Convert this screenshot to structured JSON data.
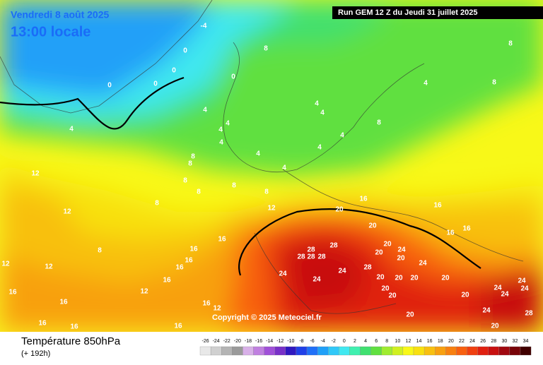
{
  "header": {
    "date": "Vendredi 8 août 2025",
    "local_time": "13:00 locale",
    "run": "Run GEM 12 Z du Jeudi 31 juillet 2025"
  },
  "copyright": "Copyright © 2025 Meteociel.fr",
  "footer": {
    "title": "Température 850hPa",
    "lead": "(+ 192h)"
  },
  "scale": {
    "ticks": [
      -26,
      -24,
      -22,
      -20,
      -18,
      -16,
      -14,
      -12,
      -10,
      -8,
      -6,
      -4,
      -2,
      0,
      2,
      4,
      6,
      8,
      10,
      12,
      14,
      16,
      18,
      20,
      22,
      24,
      26,
      28,
      30,
      32,
      34
    ],
    "colors": [
      "#e8e8e8",
      "#d0d0d0",
      "#b4b4b4",
      "#9a9a9a",
      "#d8b0e8",
      "#c080e0",
      "#a050d8",
      "#7830c8",
      "#3018c0",
      "#2040e8",
      "#2070f8",
      "#20a0f8",
      "#30c8f8",
      "#40e8f0",
      "#40f0b0",
      "#40e070",
      "#60e040",
      "#a0ec30",
      "#d0f020",
      "#f8f818",
      "#f8e010",
      "#f8c010",
      "#f8a010",
      "#f88010",
      "#f86010",
      "#f04010",
      "#e02010",
      "#c81010",
      "#a00810",
      "#780408",
      "#400000"
    ]
  },
  "contour_labels": [
    -4,
    0,
    0,
    0,
    0,
    0,
    4,
    8,
    4,
    4,
    4,
    4,
    4,
    4,
    4,
    4,
    4,
    4,
    4,
    8,
    8,
    8,
    8,
    8,
    8,
    8,
    8,
    8,
    8,
    8,
    12,
    12,
    12,
    12,
    12,
    12,
    12,
    16,
    16,
    16,
    16,
    16,
    16,
    16,
    16,
    16,
    16,
    16,
    16,
    16,
    16,
    16,
    20,
    20,
    20,
    20,
    20,
    20,
    20,
    20,
    20,
    20,
    20,
    20,
    20,
    24,
    24,
    24,
    24,
    24,
    24,
    24,
    24,
    24,
    24,
    28,
    28,
    28,
    28,
    28,
    28,
    28,
    20
  ]
}
